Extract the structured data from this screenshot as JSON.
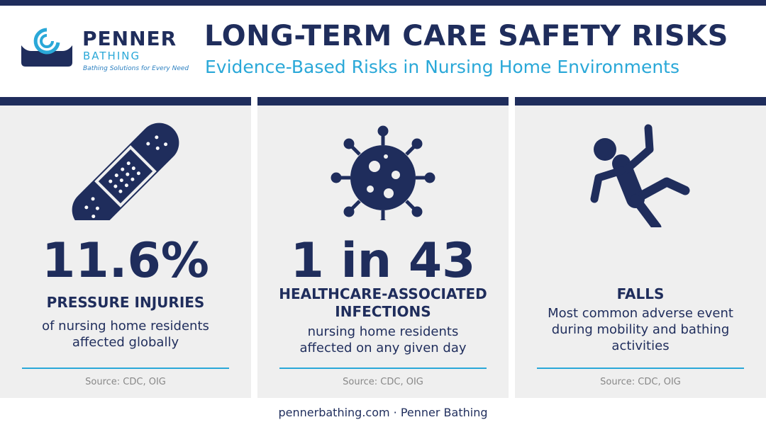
{
  "header": {
    "logo": {
      "name": "PENNER",
      "sub": "BATHING",
      "tagline": "Bathing Solutions for Every Need"
    },
    "title": "LONG-TERM CARE SAFETY RISKS",
    "subtitle": "Evidence-Based Risks in Nursing Home Environments"
  },
  "cards": [
    {
      "stat": "11.6%",
      "heading": "PRESSURE INJURIES",
      "description": "of nursing home residents affected globally",
      "source": "Source: CDC, OIG"
    },
    {
      "stat": "1 in 43",
      "heading": "HEALTHCARE-ASSOCIATED INFECTIONS",
      "description": "nursing home residents affected on any given day",
      "source": "Source: CDC, OIG"
    },
    {
      "heading": "FALLS",
      "description": "Most common adverse event during mobility and bathing activities",
      "source": "Source: CDC, OIG"
    }
  ],
  "footer": "pennerbathing.com · Penner Bathing"
}
